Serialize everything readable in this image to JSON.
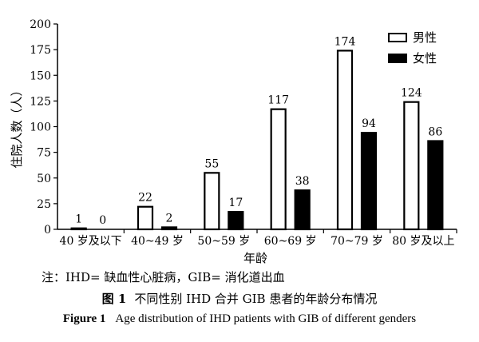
{
  "chart_data": {
    "type": "bar",
    "categories": [
      "40 岁及以下",
      "40~49 岁",
      "50~59 岁",
      "60~69 岁",
      "70~79 岁",
      "80 岁及以上"
    ],
    "series": [
      {
        "name": "男性",
        "values": [
          1,
          22,
          55,
          117,
          174,
          124
        ],
        "color": "#ffffff",
        "outline": "#000000"
      },
      {
        "name": "女性",
        "values": [
          0,
          2,
          17,
          38,
          94,
          86
        ],
        "color": "#000000",
        "outline": "#000000"
      }
    ],
    "ylabel": "住院人数（人）",
    "xlabel": "年龄",
    "ylim": [
      0,
      200
    ],
    "yticks": [
      0,
      25,
      50,
      75,
      100,
      125,
      150,
      175,
      200
    ],
    "grid": false,
    "legend": "top-right",
    "data_labels": true
  },
  "note": "注：IHD= 缺血性心脏病，GIB= 消化道出血",
  "caption_cn": {
    "label": "图 1",
    "text": "不同性别 IHD 合并 GIB 患者的年龄分布情况"
  },
  "caption_en": {
    "label": "Figure 1",
    "text": "Age distribution of IHD patients with GIB of different genders"
  }
}
